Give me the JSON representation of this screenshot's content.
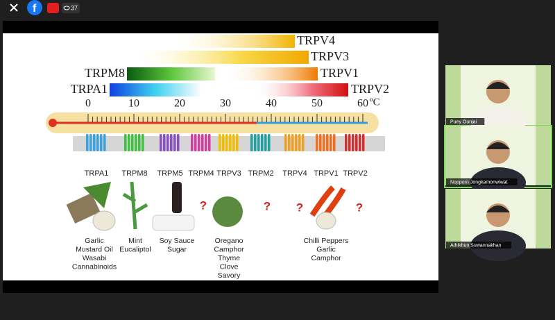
{
  "toolbar": {
    "viewers": "37"
  },
  "slide": {
    "ranges": [
      {
        "label": "TRPV4"
      },
      {
        "label": "TRPV3"
      },
      {
        "label": "TRPM8"
      },
      {
        "label": "TRPV1"
      },
      {
        "label": "TRPA1"
      },
      {
        "label": "TRPV2"
      }
    ],
    "scale": {
      "ticks": [
        0,
        10,
        20,
        30,
        40,
        50,
        60
      ],
      "unit": "ºC"
    },
    "channels": [
      "TRPA1",
      "TRPM8",
      "TRPM5",
      "TRPM4",
      "TRPV3",
      "TRPM2",
      "TRPV4",
      "TRPV1",
      "TRPV2"
    ],
    "sources": [
      {
        "lines": [
          "Garlic",
          "Mustard Oil",
          "Wasabi",
          "Cannabinoids"
        ]
      },
      {
        "lines": [
          "Mint",
          "Eucaliptol"
        ]
      },
      {
        "lines": [
          "Soy Sauce",
          "Sugar"
        ]
      },
      {
        "lines": [
          "Oregano",
          "Camphor",
          "Thyme",
          "Clove",
          "Savory"
        ]
      },
      {
        "lines": [
          "Chilli Peppers",
          "Garlic",
          "Camphor"
        ]
      }
    ],
    "unknown": [
      "?",
      "?",
      "?",
      "?"
    ]
  },
  "participants": [
    {
      "name": "Puey Ounjai"
    },
    {
      "name": "Nopporn Jongkamonwiwat"
    },
    {
      "name": "Athikhun Suwannakhan"
    }
  ]
}
